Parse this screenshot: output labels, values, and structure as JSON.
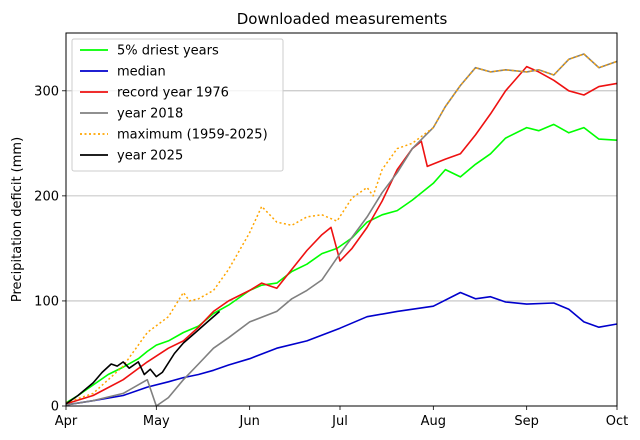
{
  "chart_data": {
    "type": "line",
    "title": "Downloaded measurements",
    "xlabel": "",
    "ylabel": "Precipitation deficit (mm)",
    "xlim": [
      "Apr 1",
      "Oct 1"
    ],
    "ylim": [
      0,
      355
    ],
    "grid": "y",
    "legend_position": "top-left",
    "x_ticks": [
      {
        "label": "Apr",
        "date": "Apr 1"
      },
      {
        "label": "May",
        "date": "May 1"
      },
      {
        "label": "Jun",
        "date": "Jun 1"
      },
      {
        "label": "Jul",
        "date": "Jul 1"
      },
      {
        "label": "Aug",
        "date": "Aug 1"
      },
      {
        "label": "Sep",
        "date": "Sep 1"
      },
      {
        "label": "Oct",
        "date": "Oct 1"
      }
    ],
    "y_ticks": [
      0,
      100,
      200,
      300
    ],
    "series": [
      {
        "name": "5% driest years",
        "color": "#00ff00",
        "dash": "solid",
        "points": [
          [
            "Apr 1",
            3
          ],
          [
            "Apr 5",
            10
          ],
          [
            "Apr 10",
            20
          ],
          [
            "Apr 15",
            30
          ],
          [
            "Apr 20",
            37
          ],
          [
            "Apr 25",
            45
          ],
          [
            "Apr 28",
            52
          ],
          [
            "May 1",
            58
          ],
          [
            "May 5",
            62
          ],
          [
            "May 10",
            70
          ],
          [
            "May 15",
            76
          ],
          [
            "May 20",
            88
          ],
          [
            "May 25",
            96
          ],
          [
            "Jun 1",
            110
          ],
          [
            "Jun 5",
            115
          ],
          [
            "Jun 10",
            117
          ],
          [
            "Jun 15",
            128
          ],
          [
            "Jun 20",
            135
          ],
          [
            "Jun 25",
            145
          ],
          [
            "Jun 30",
            150
          ],
          [
            "Jul 5",
            160
          ],
          [
            "Jul 10",
            175
          ],
          [
            "Jul 15",
            182
          ],
          [
            "Jul 20",
            186
          ],
          [
            "Jul 25",
            196
          ],
          [
            "Aug 1",
            212
          ],
          [
            "Aug 5",
            225
          ],
          [
            "Aug 10",
            218
          ],
          [
            "Aug 15",
            230
          ],
          [
            "Aug 20",
            240
          ],
          [
            "Aug 25",
            255
          ],
          [
            "Sep 1",
            265
          ],
          [
            "Sep 5",
            262
          ],
          [
            "Sep 10",
            268
          ],
          [
            "Sep 15",
            260
          ],
          [
            "Sep 20",
            265
          ],
          [
            "Sep 25",
            254
          ],
          [
            "Oct 1",
            253
          ]
        ]
      },
      {
        "name": "median",
        "color": "#0000cc",
        "dash": "solid",
        "points": [
          [
            "Apr 1",
            1
          ],
          [
            "Apr 10",
            5
          ],
          [
            "Apr 20",
            10
          ],
          [
            "Apr 28",
            18
          ],
          [
            "May 5",
            23
          ],
          [
            "May 10",
            27
          ],
          [
            "May 15",
            30
          ],
          [
            "May 20",
            34
          ],
          [
            "May 25",
            39
          ],
          [
            "Jun 1",
            45
          ],
          [
            "Jun 10",
            55
          ],
          [
            "Jun 20",
            62
          ],
          [
            "Jul 1",
            74
          ],
          [
            "Jul 10",
            85
          ],
          [
            "Jul 20",
            90
          ],
          [
            "Aug 1",
            95
          ],
          [
            "Aug 10",
            108
          ],
          [
            "Aug 15",
            102
          ],
          [
            "Aug 20",
            104
          ],
          [
            "Aug 25",
            99
          ],
          [
            "Sep 1",
            97
          ],
          [
            "Sep 10",
            98
          ],
          [
            "Sep 15",
            92
          ],
          [
            "Sep 20",
            80
          ],
          [
            "Sep 25",
            75
          ],
          [
            "Oct 1",
            78
          ]
        ]
      },
      {
        "name": "record year 1976",
        "color": "#ee1111",
        "dash": "solid",
        "points": [
          [
            "Apr 1",
            2
          ],
          [
            "Apr 10",
            10
          ],
          [
            "Apr 20",
            25
          ],
          [
            "Apr 28",
            42
          ],
          [
            "May 5",
            55
          ],
          [
            "May 10",
            62
          ],
          [
            "May 15",
            75
          ],
          [
            "May 20",
            90
          ],
          [
            "May 25",
            100
          ],
          [
            "Jun 1",
            110
          ],
          [
            "Jun 5",
            117
          ],
          [
            "Jun 10",
            112
          ],
          [
            "Jun 15",
            130
          ],
          [
            "Jun 20",
            148
          ],
          [
            "Jun 25",
            163
          ],
          [
            "Jun 28",
            170
          ],
          [
            "Jul 1",
            138
          ],
          [
            "Jul 5",
            150
          ],
          [
            "Jul 10",
            170
          ],
          [
            "Jul 15",
            195
          ],
          [
            "Jul 20",
            225
          ],
          [
            "Jul 25",
            245
          ],
          [
            "Jul 28",
            252
          ],
          [
            "Jul 30",
            228
          ],
          [
            "Aug 5",
            235
          ],
          [
            "Aug 10",
            240
          ],
          [
            "Aug 15",
            258
          ],
          [
            "Aug 20",
            278
          ],
          [
            "Aug 25",
            300
          ],
          [
            "Sep 1",
            323
          ],
          [
            "Sep 5",
            318
          ],
          [
            "Sep 10",
            310
          ],
          [
            "Sep 15",
            300
          ],
          [
            "Sep 20",
            296
          ],
          [
            "Sep 25",
            304
          ],
          [
            "Oct 1",
            307
          ]
        ]
      },
      {
        "name": "year 2018",
        "color": "#808080",
        "dash": "solid",
        "points": [
          [
            "Apr 1",
            1
          ],
          [
            "Apr 10",
            5
          ],
          [
            "Apr 20",
            12
          ],
          [
            "Apr 28",
            25
          ],
          [
            "May 1",
            0
          ],
          [
            "May 5",
            8
          ],
          [
            "May 10",
            25
          ],
          [
            "May 15",
            40
          ],
          [
            "May 20",
            55
          ],
          [
            "May 25",
            65
          ],
          [
            "Jun 1",
            80
          ],
          [
            "Jun 10",
            90
          ],
          [
            "Jun 15",
            102
          ],
          [
            "Jun 20",
            110
          ],
          [
            "Jun 25",
            120
          ],
          [
            "Jul 1",
            145
          ],
          [
            "Jul 10",
            180
          ],
          [
            "Jul 15",
            203
          ],
          [
            "Jul 20",
            222
          ],
          [
            "Jul 25",
            245
          ],
          [
            "Aug 1",
            265
          ],
          [
            "Aug 5",
            285
          ],
          [
            "Aug 10",
            305
          ],
          [
            "Aug 15",
            322
          ],
          [
            "Aug 20",
            318
          ],
          [
            "Aug 25",
            320
          ],
          [
            "Sep 1",
            318
          ],
          [
            "Sep 5",
            320
          ],
          [
            "Sep 10",
            315
          ],
          [
            "Sep 15",
            330
          ],
          [
            "Sep 20",
            335
          ],
          [
            "Sep 25",
            322
          ],
          [
            "Oct 1",
            328
          ]
        ]
      },
      {
        "name": "maximum (1959-2025)",
        "color": "#ffa500",
        "dash": "dotted",
        "points": [
          [
            "Apr 1",
            3
          ],
          [
            "Apr 10",
            12
          ],
          [
            "Apr 20",
            38
          ],
          [
            "Apr 28",
            70
          ],
          [
            "May 5",
            85
          ],
          [
            "May 10",
            108
          ],
          [
            "May 12",
            100
          ],
          [
            "May 15",
            102
          ],
          [
            "May 20",
            110
          ],
          [
            "May 25",
            130
          ],
          [
            "Jun 1",
            165
          ],
          [
            "Jun 5",
            190
          ],
          [
            "Jun 10",
            175
          ],
          [
            "Jun 15",
            172
          ],
          [
            "Jun 20",
            180
          ],
          [
            "Jun 25",
            182
          ],
          [
            "Jun 30",
            176
          ],
          [
            "Jul 5",
            198
          ],
          [
            "Jul 10",
            208
          ],
          [
            "Jul 12",
            200
          ],
          [
            "Jul 15",
            225
          ],
          [
            "Jul 20",
            245
          ],
          [
            "Jul 25",
            250
          ],
          [
            "Aug 1",
            265
          ],
          [
            "Aug 5",
            285
          ],
          [
            "Aug 10",
            305
          ],
          [
            "Aug 15",
            322
          ],
          [
            "Aug 20",
            318
          ],
          [
            "Aug 25",
            320
          ],
          [
            "Sep 1",
            318
          ],
          [
            "Sep 5",
            320
          ],
          [
            "Sep 10",
            315
          ],
          [
            "Sep 15",
            330
          ],
          [
            "Sep 20",
            335
          ],
          [
            "Sep 25",
            322
          ],
          [
            "Oct 1",
            328
          ]
        ]
      },
      {
        "name": "year 2025",
        "color": "#000000",
        "dash": "solid",
        "points": [
          [
            "Apr 1",
            2
          ],
          [
            "Apr 5",
            10
          ],
          [
            "Apr 10",
            22
          ],
          [
            "Apr 13",
            32
          ],
          [
            "Apr 16",
            40
          ],
          [
            "Apr 18",
            38
          ],
          [
            "Apr 20",
            42
          ],
          [
            "Apr 22",
            36
          ],
          [
            "Apr 25",
            42
          ],
          [
            "Apr 27",
            30
          ],
          [
            "Apr 29",
            35
          ],
          [
            "May 1",
            28
          ],
          [
            "May 3",
            32
          ],
          [
            "May 7",
            50
          ],
          [
            "May 10",
            60
          ],
          [
            "May 14",
            70
          ],
          [
            "May 18",
            80
          ],
          [
            "May 22",
            90
          ]
        ]
      }
    ]
  }
}
